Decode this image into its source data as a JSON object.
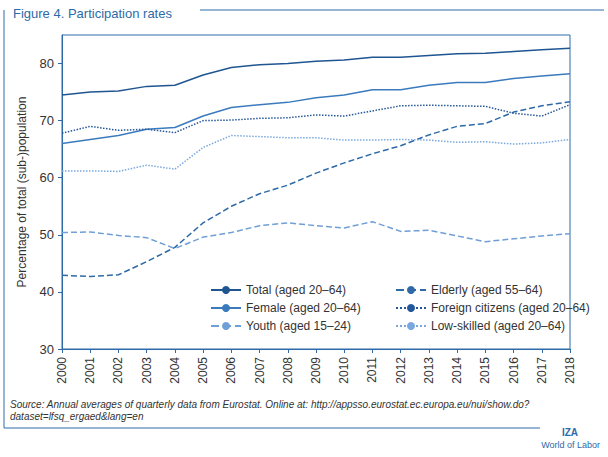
{
  "chart_data": {
    "type": "line",
    "title": "Figure 4. Participation rates",
    "y_label": "Percentage of total (sub-)population",
    "source": "Source: Annual averages of quarterly data from Eurostat. Online at: http://appsso.eurostat.ec.europa.eu/nui/show.do?\ndataset=lfsq_ergaed&lang=en",
    "logo": [
      "IZA",
      "World of Labor"
    ],
    "categories": [
      "2000",
      "2001",
      "2002",
      "2003",
      "2004",
      "2005",
      "2006",
      "2007",
      "2008",
      "2009",
      "2010",
      "2011",
      "2012",
      "2013",
      "2014",
      "2015",
      "2016",
      "2017",
      "2018"
    ],
    "ylim": [
      30,
      85
    ],
    "yticks": [
      30,
      40,
      50,
      60,
      70,
      80
    ],
    "grid": false,
    "legend": "lower right",
    "series": [
      {
        "name": "Total (aged 20–64)",
        "color": "#1f5591",
        "line_style": "solid",
        "values": [
          74.5,
          75,
          75.2,
          76,
          76.2,
          78,
          79.3,
          79.8,
          80,
          80.4,
          80.6,
          81.1,
          81.1,
          81.4,
          81.7,
          81.8,
          82.1,
          82.4,
          82.7
        ]
      },
      {
        "name": "Elderly (aged 55–64)",
        "color": "#2e6aa8",
        "line_style": "dashed",
        "values": [
          42.9,
          42.7,
          43,
          45.3,
          47.8,
          52.1,
          55,
          57.2,
          58.7,
          60.8,
          62.6,
          64.2,
          65.6,
          67.5,
          69,
          69.5,
          71.5,
          72.6,
          73.3
        ]
      },
      {
        "name": "Female (aged 20–64)",
        "color": "#3b7bbd",
        "line_style": "solid",
        "values": [
          66,
          66.7,
          67.4,
          68.5,
          68.8,
          70.8,
          72.3,
          72.8,
          73.2,
          74,
          74.5,
          75.4,
          75.4,
          76.2,
          76.7,
          76.7,
          77.4,
          77.8,
          78.2
        ]
      },
      {
        "name": "Foreign citizens (aged 20–64)",
        "color": "#24579a",
        "line_style": "dotted",
        "values": [
          67.8,
          69,
          68.3,
          68.5,
          67.9,
          70,
          70.1,
          70.4,
          70.5,
          71,
          70.8,
          71.7,
          72.6,
          72.7,
          72.6,
          72.5,
          71.3,
          70.8,
          72.8
        ]
      },
      {
        "name": "Youth (aged 15–24)",
        "color": "#6f9fd6",
        "line_style": "dashed",
        "values": [
          50.4,
          50.5,
          49.9,
          49.5,
          47.6,
          49.6,
          50.4,
          51.6,
          52.1,
          51.6,
          51.2,
          52.3,
          50.6,
          50.8,
          49.8,
          48.8,
          49.3,
          49.8,
          50.2
        ]
      },
      {
        "name": "Low-skilled (aged 20–64)",
        "color": "#7aa8de",
        "line_style": "dotted",
        "values": [
          61.2,
          61.2,
          61.1,
          62.2,
          61.5,
          65.3,
          67.4,
          67.2,
          67,
          67,
          66.6,
          66.6,
          66.7,
          66.6,
          66.2,
          66.3,
          65.9,
          66.1,
          66.7
        ]
      }
    ]
  }
}
